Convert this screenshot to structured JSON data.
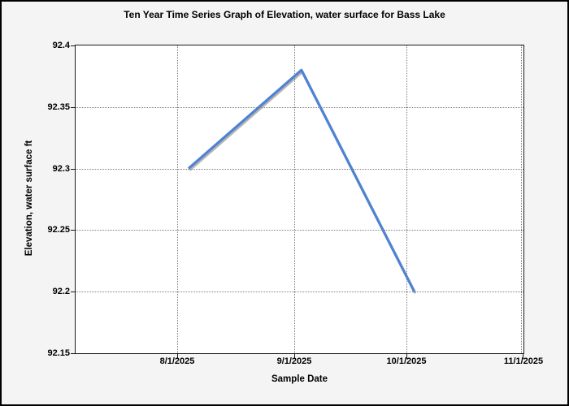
{
  "chart_data": {
    "type": "line",
    "title": "Ten Year Time Series Graph of Elevation, water surface for Bass Lake",
    "xlabel": "Sample Date",
    "ylabel": "Elevation, water surface ft",
    "x_ticks": [
      "8/1/2025",
      "9/1/2025",
      "10/1/2025",
      "11/1/2025"
    ],
    "y_ticks": [
      "92.4",
      "92.35",
      "92.3",
      "92.25",
      "92.2",
      "92.15"
    ],
    "ylim": [
      92.15,
      92.4
    ],
    "x_range": [
      "7/5/2025",
      "11/1/2025"
    ],
    "grid": "dotted",
    "legend": "none",
    "series": [
      {
        "color": "#4e82d4",
        "shadow": true,
        "line_width": 3.2,
        "points": [
          {
            "x": "8/4/2025",
            "y": 92.3
          },
          {
            "x": "9/3/2025",
            "y": 92.38
          },
          {
            "x": "10/3/2025",
            "y": 92.2
          }
        ]
      }
    ],
    "colors": {
      "background": "#f4f4f4",
      "plot_background": "#ffffff",
      "axis": "#1a1a1a",
      "grid": "#7d7d7d",
      "text": "#000000",
      "shadow": "rgba(120,120,120,0.55)",
      "frame_border": "#000000"
    }
  }
}
